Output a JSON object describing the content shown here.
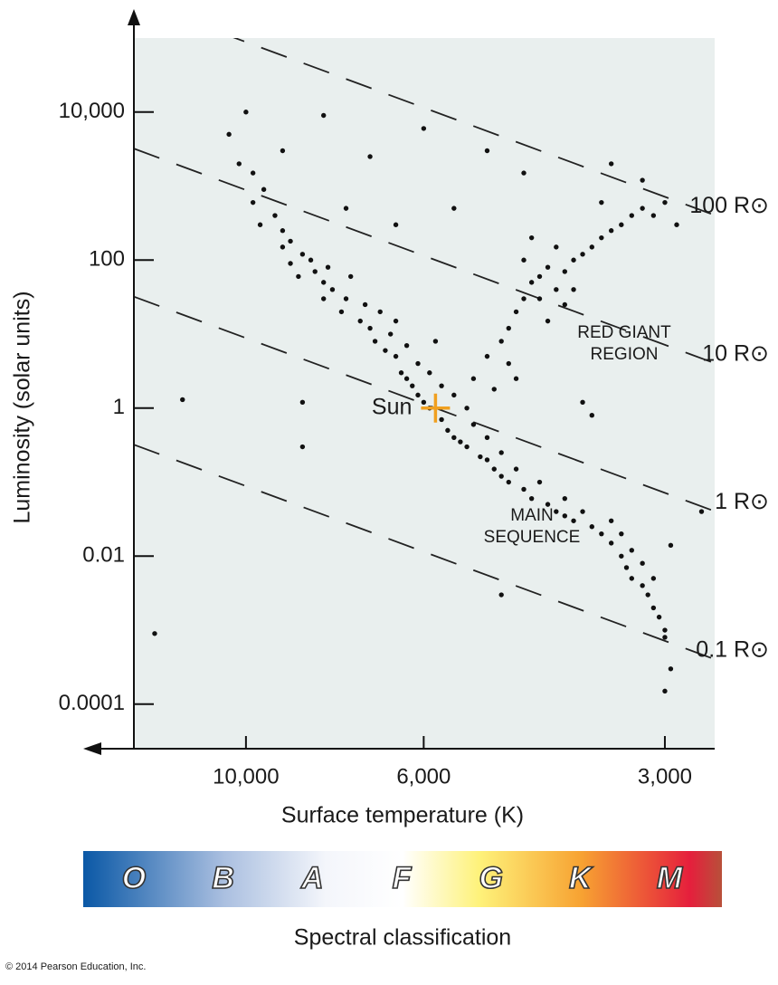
{
  "chart_data": {
    "type": "scatter",
    "x_label": "Surface temperature (K)",
    "y_label": "Luminosity (solar units)",
    "x_log": true,
    "y_log": true,
    "xlim": [
      13800,
      2600
    ],
    "ylim": [
      2.5e-05,
      100000
    ],
    "xticks": [
      {
        "value": 10000,
        "label": "10,000"
      },
      {
        "value": 6000,
        "label": "6,000"
      },
      {
        "value": 3000,
        "label": "3,000"
      }
    ],
    "yticks": [
      {
        "value": 10000,
        "label": "10,000"
      },
      100,
      1,
      0.01,
      0.0001
    ],
    "color": "#111111",
    "x": [
      10200,
      9800,
      9500,
      9800,
      9200,
      9000,
      8800,
      8500,
      8800,
      8200,
      8000,
      7800,
      7500,
      7600,
      7200,
      7000,
      6900,
      6700,
      6500,
      6400,
      6300,
      6200,
      6100,
      6000,
      5900,
      5700,
      5600,
      5500,
      5400,
      5300,
      5100,
      5000,
      4900,
      4800,
      4700,
      4500,
      4400,
      4200,
      4100,
      4000,
      3900,
      3700,
      3600,
      3500,
      3400,
      3350,
      3300,
      3200,
      3150,
      3100,
      3050,
      3000,
      3000,
      9600,
      9000,
      8600,
      8300,
      7900,
      7400,
      7100,
      6800,
      6600,
      6300,
      6100,
      5900,
      5700,
      5500,
      5300,
      5200,
      5000,
      4800,
      4600,
      4300,
      4000,
      3800,
      3500,
      3400,
      3300,
      3200,
      3100,
      5000,
      4800,
      4700,
      4600,
      4500,
      4400,
      4300,
      4200,
      4100,
      4000,
      3900,
      3800,
      3700,
      3600,
      3500,
      3400,
      3300,
      3200,
      3100,
      3000,
      2900,
      4500,
      4300,
      4700,
      4600,
      4200,
      4000,
      3900,
      4400,
      4100,
      10000,
      8000,
      7000,
      6000,
      5000,
      4500,
      3500,
      7500,
      12000,
      8500,
      8500,
      4800,
      13000,
      3000,
      2950,
      3700,
      3800,
      2950,
      2700,
      5500,
      6500,
      9000,
      10500,
      8000,
      6500,
      5800,
      5200,
      4900,
      3600,
      3200
    ],
    "y": [
      2000,
      1500,
      900,
      600,
      400,
      250,
      180,
      120,
      90,
      70,
      50,
      40,
      30,
      20,
      15,
      12,
      8,
      6,
      5,
      3,
      2.5,
      2,
      1.5,
      1.2,
      1,
      0.7,
      0.5,
      0.4,
      0.35,
      0.3,
      0.22,
      0.2,
      0.15,
      0.12,
      0.1,
      0.08,
      0.06,
      0.05,
      0.04,
      0.035,
      0.03,
      0.025,
      0.02,
      0.015,
      0.01,
      0.007,
      0.005,
      0.004,
      0.003,
      0.002,
      0.0015,
      0.001,
      0.0008,
      300,
      150,
      60,
      100,
      80,
      60,
      25,
      20,
      10,
      7,
      4,
      3,
      2,
      1.5,
      1,
      0.6,
      0.4,
      0.25,
      0.15,
      0.1,
      0.06,
      0.04,
      0.03,
      0.02,
      0.012,
      0.008,
      0.005,
      5,
      8,
      12,
      20,
      30,
      50,
      60,
      80,
      40,
      70,
      100,
      120,
      150,
      200,
      250,
      300,
      400,
      500,
      400,
      600,
      300,
      100,
      30,
      4,
      2.5,
      15,
      25,
      40,
      200,
      150,
      10000,
      9000,
      2500,
      6000,
      3000,
      1500,
      2000,
      500,
      1.3,
      1.2,
      0.3,
      0.003,
      0.0009,
      0.00015,
      0.0003,
      0.8,
      1.2,
      0.014,
      0.04,
      500,
      300,
      3000,
      5000,
      30,
      15,
      8,
      2.5,
      1.8,
      600,
      1200
    ],
    "sun": {
      "label": "Sun",
      "x": 5800,
      "y": 1,
      "color": "#f0a020"
    },
    "radius_lines": [
      {
        "value": 100,
        "label": "100 R⊙"
      },
      {
        "value": 10,
        "label": "10 R⊙"
      },
      {
        "value": 1,
        "label": "1 R⊙"
      },
      {
        "value": 0.1,
        "label": "0.1 R⊙"
      }
    ],
    "annotations": [
      [
        "RED GIANT",
        "REGION"
      ],
      [
        "MAIN",
        "SEQUENCE"
      ]
    ],
    "spectral": {
      "title": "Spectral classification",
      "classes": [
        "O",
        "B",
        "A",
        "F",
        "G",
        "K",
        "M"
      ]
    },
    "credit": "© 2014 Pearson Education, Inc."
  }
}
